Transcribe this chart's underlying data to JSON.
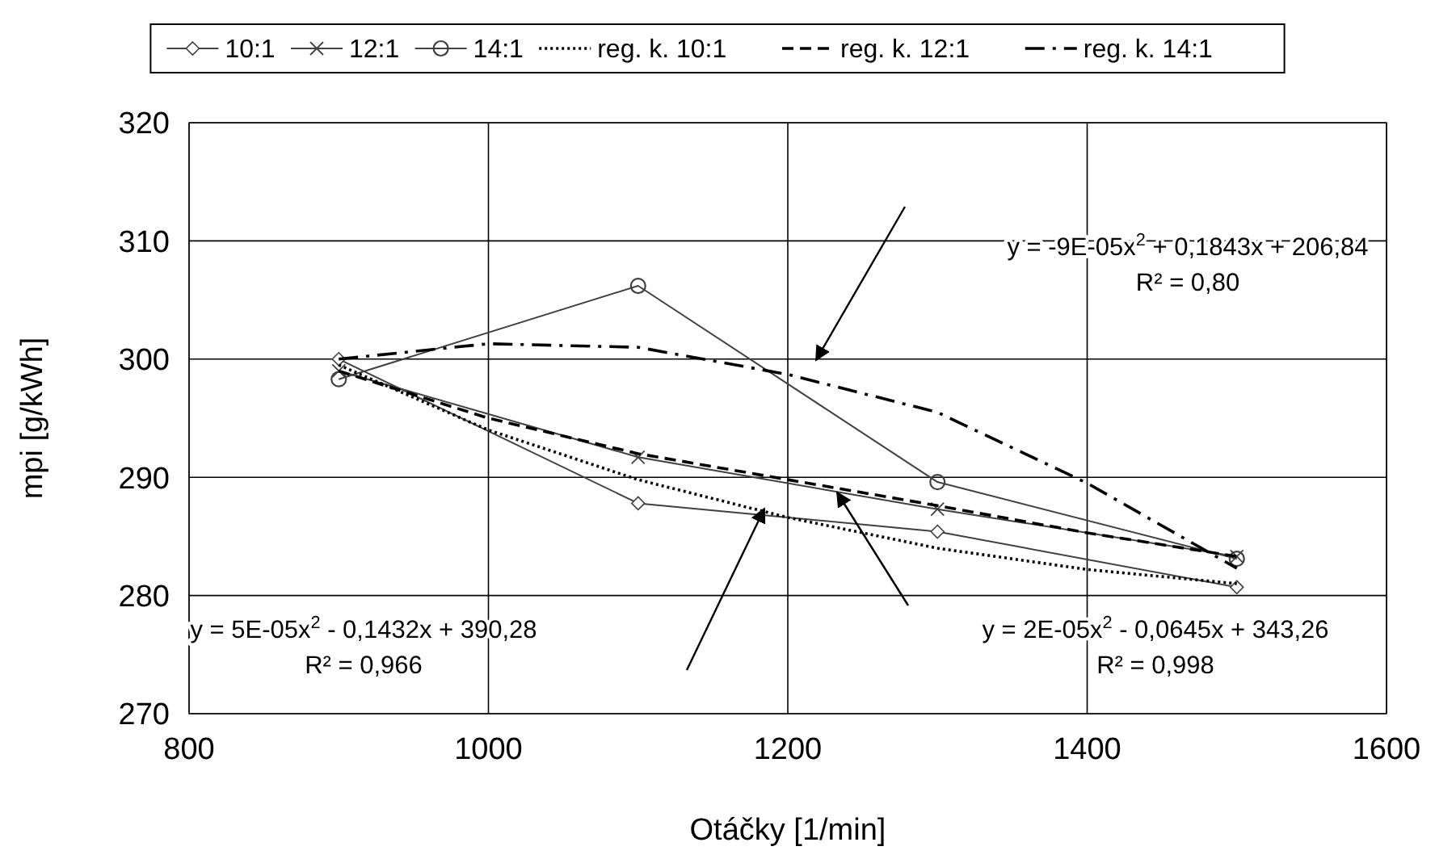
{
  "chart_data": {
    "type": "line",
    "xlabel": "Otáčky  [1/min]",
    "ylabel": "mpi [g/kWh]",
    "xlim": [
      800,
      1600
    ],
    "xticks": [
      800,
      1000,
      1200,
      1400,
      1600
    ],
    "ylim": [
      270,
      320
    ],
    "yticks": [
      270,
      280,
      290,
      300,
      310,
      320
    ],
    "grid": true,
    "legend": "top",
    "series": [
      {
        "name": "10:1",
        "color": "#404040",
        "marker": "diamond",
        "line_style": "solid",
        "x": [
          900,
          1100,
          1300,
          1500
        ],
        "values": [
          300.0,
          287.8,
          285.4,
          280.7
        ]
      },
      {
        "name": "12:1",
        "color": "#404040",
        "marker": "cross",
        "line_style": "solid",
        "x": [
          900,
          1100,
          1300,
          1500
        ],
        "values": [
          299.0,
          291.7,
          287.3,
          283.3
        ]
      },
      {
        "name": "14:1",
        "color": "#404040",
        "marker": "circle",
        "line_style": "solid",
        "x": [
          900,
          1100,
          1300,
          1500
        ],
        "values": [
          298.3,
          306.2,
          289.6,
          283.1
        ]
      },
      {
        "name": "reg. k. 10:1",
        "color": "#000000",
        "marker": "none",
        "line_style": "dotted",
        "x": [
          900,
          1000,
          1100,
          1200,
          1300,
          1400,
          1500
        ],
        "values": [
          299.5,
          294.0,
          289.8,
          286.6,
          284.0,
          282.2,
          281.0
        ]
      },
      {
        "name": "reg. k. 12:1",
        "color": "#000000",
        "marker": "none",
        "line_style": "dashed",
        "x": [
          900,
          1000,
          1100,
          1200,
          1300,
          1400,
          1500
        ],
        "values": [
          299.0,
          295.0,
          292.0,
          289.8,
          287.6,
          285.3,
          283.3
        ]
      },
      {
        "name": "reg. k. 14:1",
        "color": "#000000",
        "marker": "none",
        "line_style": "dashdot",
        "x": [
          900,
          1000,
          1100,
          1200,
          1300,
          1400,
          1500
        ],
        "values": [
          300.0,
          301.3,
          301.0,
          298.7,
          295.5,
          289.5,
          282.3
        ]
      }
    ],
    "annotations": [
      "y = -9E-05x$^{2}$ + 0,1843x + 206,84\nR² = 0,80",
      "y = 5E-05x$^{2}$ - 0,1432x + 390,28\nR² = 0,966",
      "y = 2E-05x$^{2}$ - 0,0645x + 343,26\nR² = 0,998"
    ]
  }
}
